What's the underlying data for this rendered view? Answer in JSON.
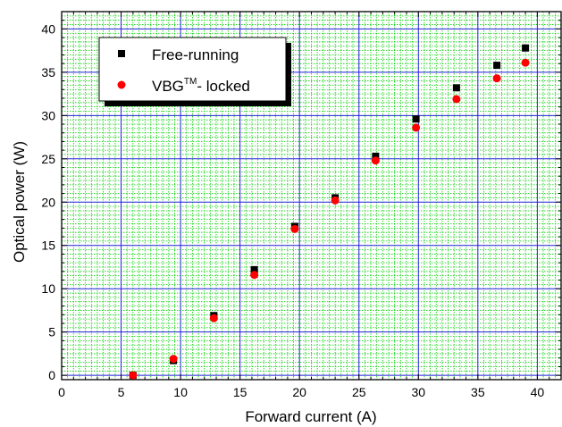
{
  "chart_data": {
    "type": "scatter",
    "xlabel": "Forward current (A)",
    "ylabel": "Optical power (W)",
    "xlim": [
      0,
      42
    ],
    "ylim": [
      -0.5,
      42
    ],
    "x_ticks": [
      "0",
      "5",
      "10",
      "15",
      "20",
      "25",
      "30",
      "35",
      "40"
    ],
    "y_ticks": [
      "0",
      "5",
      "10",
      "15",
      "20",
      "25",
      "30",
      "35",
      "40"
    ],
    "grid": true,
    "legend_position": "top-left",
    "series": [
      {
        "name": "Free-running",
        "marker": "square",
        "color": "#000000",
        "points": [
          {
            "x": 6.0,
            "y": 0.0
          },
          {
            "x": 9.4,
            "y": 1.7
          },
          {
            "x": 12.8,
            "y": 6.9
          },
          {
            "x": 16.2,
            "y": 12.2
          },
          {
            "x": 19.6,
            "y": 17.2
          },
          {
            "x": 23.0,
            "y": 20.5
          },
          {
            "x": 26.4,
            "y": 25.3
          },
          {
            "x": 29.8,
            "y": 29.6
          },
          {
            "x": 33.2,
            "y": 33.2
          },
          {
            "x": 36.6,
            "y": 35.8
          },
          {
            "x": 39.0,
            "y": 37.8
          }
        ]
      },
      {
        "name": "VBG",
        "name_superscript": "TM",
        "name_suffix": "- locked",
        "marker": "circle",
        "color": "#ff0000",
        "points": [
          {
            "x": 6.0,
            "y": 0.0
          },
          {
            "x": 9.4,
            "y": 1.9
          },
          {
            "x": 12.8,
            "y": 6.6
          },
          {
            "x": 16.2,
            "y": 11.6
          },
          {
            "x": 19.6,
            "y": 16.9
          },
          {
            "x": 23.0,
            "y": 20.2
          },
          {
            "x": 26.4,
            "y": 24.8
          },
          {
            "x": 29.8,
            "y": 28.6
          },
          {
            "x": 33.2,
            "y": 31.9
          },
          {
            "x": 36.6,
            "y": 34.3
          },
          {
            "x": 39.0,
            "y": 36.1
          }
        ]
      }
    ]
  },
  "colors": {
    "minor_grid": "#00d000",
    "major_grid": "#2020d8",
    "axis": "#000000"
  }
}
